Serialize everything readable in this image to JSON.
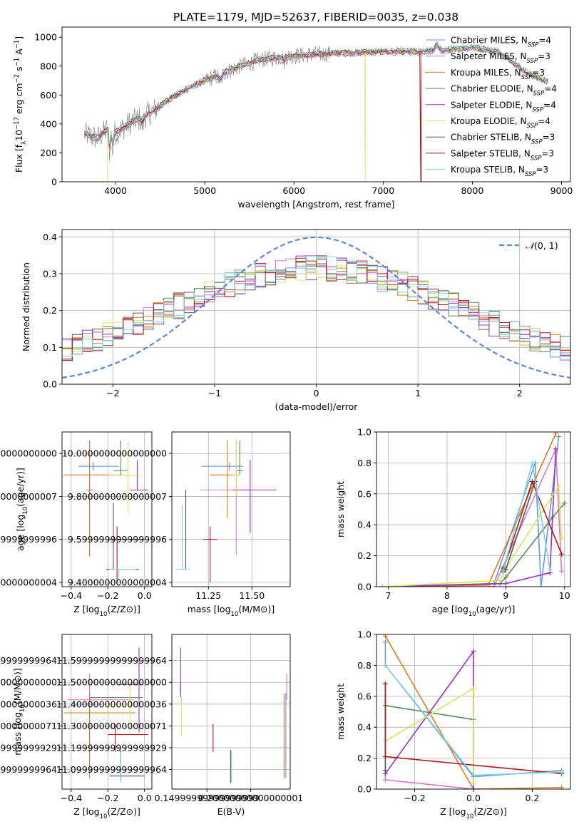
{
  "figure_title": "PLATE=1179, MJD=52637, FIBERID=0035, z=0.038",
  "colors": {
    "Chabrier MILES": "#6699dd",
    "Salpeter MILES": "#e377c2",
    "Kroupa MILES": "#e07b1f",
    "Chabrier ELODIE": "#5a8a5a",
    "Salpeter ELODIE": "#9b30c0",
    "Kroupa ELODIE": "#d4e85a",
    "Chabrier STELIB": "#555555",
    "Salpeter STELIB": "#b01818",
    "Kroupa STELIB": "#7dd3dc",
    "data": "#808080"
  },
  "chart_data": [
    {
      "id": "spectrum",
      "type": "line",
      "title": "PLATE=1179, MJD=52637, FIBERID=0035, z=0.038",
      "xlabel": "wavelength [Angstrom, rest frame]",
      "ylabel": "Flux [f_λ 10^-17 erg cm^-2 s^-1 A^-1]",
      "xlim": [
        3400,
        9100
      ],
      "ylim": [
        0,
        1070
      ],
      "xticks": [
        4000,
        5000,
        6000,
        7000,
        8000,
        9000
      ],
      "yticks": [
        0,
        200,
        400,
        600,
        800,
        1000
      ],
      "legend_position": "right",
      "legend": [
        {
          "label": "Chabrier MILES, N",
          "sub": "SSP",
          "suffix": "=4"
        },
        {
          "label": "Salpeter MILES, N",
          "sub": "SSP",
          "suffix": "=3"
        },
        {
          "label": "Kroupa MILES, N",
          "sub": "SSP",
          "suffix": "=3"
        },
        {
          "label": "Chabrier ELODIE, N",
          "sub": "SSP",
          "suffix": "=4"
        },
        {
          "label": "Salpeter ELODIE, N",
          "sub": "SSP",
          "suffix": "=4"
        },
        {
          "label": "Kroupa ELODIE, N",
          "sub": "SSP",
          "suffix": "=4"
        },
        {
          "label": "Chabrier STELIB, N",
          "sub": "SSP",
          "suffix": "=3"
        },
        {
          "label": "Salpeter STELIB, N",
          "sub": "SSP",
          "suffix": "=3"
        },
        {
          "label": "Kroupa STELIB, N",
          "sub": "SSP",
          "suffix": "=3"
        }
      ],
      "continuum_anchors": {
        "x": [
          3650,
          3800,
          3900,
          4000,
          4200,
          4400,
          4600,
          4800,
          5000,
          5200,
          5400,
          5600,
          5800,
          6000,
          6200,
          6500,
          7000,
          7400,
          7700,
          8000,
          8300,
          8600,
          8800
        ],
        "y": [
          330,
          300,
          360,
          340,
          420,
          480,
          570,
          640,
          700,
          750,
          800,
          840,
          860,
          870,
          880,
          890,
          900,
          900,
          910,
          930,
          900,
          760,
          700
        ]
      },
      "dropouts": [
        {
          "series": "Kroupa ELODIE",
          "x": 3910
        },
        {
          "series": "Kroupa ELODIE",
          "x": 6800
        },
        {
          "series": "Salpeter STELIB",
          "x": 7420
        }
      ]
    },
    {
      "id": "residuals",
      "type": "step-histogram",
      "xlabel": "(data-model)/error",
      "ylabel": "Normed distribution",
      "xlim": [
        -2.5,
        2.5
      ],
      "ylim": [
        0,
        0.42
      ],
      "xticks": [
        -2,
        -1,
        0,
        1,
        2
      ],
      "yticks": [
        0.0,
        0.1,
        0.2,
        0.3,
        0.4
      ],
      "reference_curve": {
        "label": "N(0,1)",
        "mu": 0,
        "sigma": 1,
        "style": "dashed"
      },
      "legend_position": "top-right",
      "bin_width": 0.1
    },
    {
      "id": "age_vs_Z",
      "type": "errorbar",
      "xlabel": "Z [log10(Z/Z⊙)]",
      "ylabel": "age [log10(age/yr)]",
      "xlim": [
        -0.45,
        0.04
      ],
      "ylim": [
        9.38,
        10.1
      ],
      "xticks": [
        -0.4,
        -0.2,
        0.0
      ],
      "yticks": [
        9.4,
        9.6,
        9.8,
        10.0
      ],
      "points": [
        {
          "series": "Chabrier MILES",
          "x": -0.28,
          "xerr": [
            0.08,
            0.14
          ],
          "y": 9.94,
          "yerr": [
            0.02,
            0.02
          ]
        },
        {
          "series": "Salpeter MILES",
          "x": -0.3,
          "xerr": [
            0.02,
            0.02
          ],
          "y": 9.83,
          "yerr": [
            0.3,
            0.23
          ]
        },
        {
          "series": "Kroupa MILES",
          "x": -0.3,
          "xerr": [
            0.14,
            0.18
          ],
          "y": 9.9,
          "yerr": [
            0.38,
            0.16
          ]
        },
        {
          "series": "Chabrier ELODIE",
          "x": -0.13,
          "xerr": [
            0.04,
            0.04
          ],
          "y": 9.92,
          "yerr": [
            0.02,
            0.14
          ]
        },
        {
          "series": "Salpeter ELODIE",
          "x": -0.04,
          "xerr": [
            0.04,
            0.06
          ],
          "y": 9.83,
          "yerr": [
            0.0,
            0.14
          ]
        },
        {
          "series": "Kroupa ELODIE",
          "x": -0.09,
          "xerr": [
            0.11,
            0.06
          ],
          "y": 9.9,
          "yerr": [
            0.18,
            0.15
          ]
        },
        {
          "series": "Chabrier STELIB",
          "x": -0.17,
          "xerr": [
            0.04,
            0.14
          ],
          "y": 9.46,
          "yerr": [
            0.0,
            0.31
          ]
        },
        {
          "series": "Salpeter STELIB",
          "x": -0.15,
          "xerr": [
            0.04,
            0.15
          ],
          "y": 9.6,
          "yerr": [
            0.2,
            0.06
          ]
        },
        {
          "series": "Kroupa STELIB",
          "x": -0.14,
          "xerr": [
            0.05,
            0.09
          ],
          "y": 9.46,
          "yerr": [
            0.04,
            0.0
          ]
        }
      ]
    },
    {
      "id": "age_vs_mass",
      "type": "errorbar",
      "xlabel": "mass [log10(M/M⊙)]",
      "ylabel": "",
      "xlim": [
        11.04,
        11.72
      ],
      "ylim": [
        9.38,
        10.1
      ],
      "xticks": [
        11.25,
        11.5
      ],
      "yticks": [
        9.4,
        9.6,
        9.8,
        10.0
      ],
      "points": [
        {
          "series": "Chabrier MILES",
          "x": 11.37,
          "xerr": [
            0.16,
            0.08
          ],
          "y": 9.94,
          "yerr": [
            0.02,
            0.02
          ]
        },
        {
          "series": "Salpeter MILES",
          "x": 11.41,
          "xerr": [
            0.21,
            0.08
          ],
          "y": 9.83,
          "yerr": [
            0.3,
            0.23
          ]
        },
        {
          "series": "Kroupa MILES",
          "x": 11.36,
          "xerr": [
            0.1,
            0.06
          ],
          "y": 9.9,
          "yerr": [
            0.2,
            0.16
          ]
        },
        {
          "series": "Chabrier ELODIE",
          "x": 11.43,
          "xerr": [
            0.02,
            0.02
          ],
          "y": 9.92,
          "yerr": [
            0.02,
            0.14
          ]
        },
        {
          "series": "Salpeter ELODIE",
          "x": 11.49,
          "xerr": [
            0.1,
            0.15
          ],
          "y": 9.83,
          "yerr": [
            0.2,
            0.14
          ]
        },
        {
          "series": "Kroupa ELODIE",
          "x": 11.41,
          "xerr": [
            0.02,
            0.02
          ],
          "y": 9.9,
          "yerr": [
            0.1,
            0.17
          ]
        },
        {
          "series": "Chabrier STELIB",
          "x": 11.12,
          "xerr": [
            0.0,
            0.0
          ],
          "y": 9.46,
          "yerr": [
            0.0,
            0.37
          ]
        },
        {
          "series": "Salpeter STELIB",
          "x": 11.26,
          "xerr": [
            0.04,
            0.04
          ],
          "y": 9.6,
          "yerr": [
            0.2,
            0.06
          ]
        },
        {
          "series": "Kroupa STELIB",
          "x": 11.1,
          "xerr": [
            0.04,
            0.04
          ],
          "y": 9.46,
          "yerr": [
            0.0,
            0.3
          ]
        }
      ]
    },
    {
      "id": "weight_vs_age",
      "type": "line",
      "xlabel": "age [log10(age/yr)]",
      "ylabel": "mass weight",
      "xlim": [
        6.8,
        10.1
      ],
      "ylim": [
        0,
        1.0
      ],
      "xticks": [
        7,
        8,
        9,
        10
      ],
      "yticks": [
        0.0,
        0.2,
        0.4,
        0.6,
        0.8,
        1.0
      ],
      "series": [
        {
          "name": "Chabrier MILES",
          "x": [
            6.9,
            8.8,
            9.5,
            9.6,
            9.9
          ],
          "y": [
            0.0,
            0.02,
            0.8,
            0.0,
            0.97
          ]
        },
        {
          "name": "Salpeter MILES",
          "x": [
            6.9,
            8.8,
            9.85,
            9.95
          ],
          "y": [
            0.0,
            0.0,
            0.89,
            0.1
          ]
        },
        {
          "name": "Kroupa MILES",
          "x": [
            6.9,
            8.7,
            9.85
          ],
          "y": [
            0.0,
            0.01,
            0.99
          ]
        },
        {
          "name": "Chabrier ELODIE",
          "x": [
            6.9,
            8.9,
            9.0,
            9.8,
            10.0
          ],
          "y": [
            0.0,
            0.02,
            0.06,
            0.45,
            0.54
          ]
        },
        {
          "name": "Salpeter ELODIE",
          "x": [
            6.9,
            9.0,
            9.75,
            9.85
          ],
          "y": [
            0.0,
            0.02,
            0.09,
            0.89
          ]
        },
        {
          "name": "Kroupa ELODIE",
          "x": [
            6.9,
            8.9,
            9.0,
            9.9,
            9.95
          ],
          "y": [
            0.0,
            0.04,
            0.12,
            0.65,
            0.31
          ]
        },
        {
          "name": "Chabrier STELIB",
          "x": [
            8.95,
            9.0,
            9.5
          ],
          "y": [
            0.12,
            0.11,
            0.68
          ]
        },
        {
          "name": "Salpeter STELIB",
          "x": [
            8.95,
            9.45,
            9.95
          ],
          "y": [
            0.1,
            0.68,
            0.21
          ]
        },
        {
          "name": "Kroupa STELIB",
          "x": [
            8.95,
            9.45,
            9.75
          ],
          "y": [
            0.09,
            0.8,
            0.11
          ]
        }
      ]
    },
    {
      "id": "mass_vs_Z",
      "type": "errorbar",
      "xlabel": "Z [log10(Z/Z⊙)]",
      "ylabel": "mass [log10(M/M⊙)]",
      "xlim": [
        -0.45,
        0.04
      ],
      "ylim": [
        11.01,
        11.72
      ],
      "xticks": [
        -0.4,
        -0.2,
        0.0
      ],
      "yticks": [
        11.1,
        11.2,
        11.3,
        11.4,
        11.5,
        11.6
      ],
      "points": [
        {
          "series": "Chabrier MILES",
          "x": -0.3,
          "xerr": [
            0.08,
            0.1
          ],
          "y": 11.4,
          "yerr": [
            0.29,
            0.08
          ]
        },
        {
          "series": "Salpeter MILES",
          "x": -0.3,
          "xerr": [
            0.12,
            0.24
          ],
          "y": 11.42,
          "yerr": [
            0.26,
            0.12
          ]
        },
        {
          "series": "Kroupa MILES",
          "x": -0.3,
          "xerr": [
            0.14,
            0.25
          ],
          "y": 11.36,
          "yerr": [
            0.3,
            0.09
          ]
        },
        {
          "series": "Chabrier ELODIE",
          "x": -0.3,
          "xerr": [
            0.0,
            0.29
          ],
          "y": 11.43,
          "yerr": [
            0.0,
            0.0
          ]
        },
        {
          "series": "Salpeter ELODIE",
          "x": -0.03,
          "xerr": [
            0.11,
            0.02
          ],
          "y": 11.49,
          "yerr": [
            0.22,
            0.17
          ]
        },
        {
          "series": "Kroupa ELODIE",
          "x": -0.08,
          "xerr": [
            0.15,
            0.0
          ],
          "y": 11.4,
          "yerr": [
            0.14,
            0.1
          ]
        },
        {
          "series": "Chabrier STELIB",
          "x": -0.13,
          "xerr": [
            0.06,
            0.13
          ],
          "y": 11.07,
          "yerr": [
            0.02,
            0.12
          ]
        },
        {
          "series": "Salpeter STELIB",
          "x": -0.16,
          "xerr": [
            0.04,
            0.18
          ],
          "y": 11.26,
          "yerr": [
            0.08,
            0.05
          ]
        },
        {
          "series": "Kroupa STELIB",
          "x": -0.13,
          "xerr": [
            0.03,
            0.12
          ],
          "y": 11.1,
          "yerr": [
            0.06,
            0.08
          ]
        }
      ]
    },
    {
      "id": "mass_vs_ebv",
      "type": "errorbar",
      "xlabel": "E(B-V)",
      "ylabel": "",
      "xlim": [
        0.11,
        0.245
      ],
      "ylim": [
        11.01,
        11.72
      ],
      "xticks": [
        0.15,
        0.2
      ],
      "yticks": [
        11.1,
        11.2,
        11.3,
        11.4,
        11.5,
        11.6
      ],
      "points": [
        {
          "series": "Chabrier MILES",
          "x": 0.24,
          "xerr": [
            0.0,
            0.0
          ],
          "y": 11.3,
          "yerr": [
            0.24,
            0.15
          ]
        },
        {
          "series": "Salpeter MILES",
          "x": 0.241,
          "xerr": [
            0.0,
            0.0
          ],
          "y": 11.42,
          "yerr": [
            0.0,
            0.12
          ]
        },
        {
          "series": "Kroupa MILES",
          "x": 0.238,
          "xerr": [
            0.0,
            0.0
          ],
          "y": 11.3,
          "yerr": [
            0.24,
            0.15
          ]
        },
        {
          "series": "Chabrier ELODIE",
          "x": 0.12,
          "xerr": [
            0.0,
            0.0
          ],
          "y": 11.5,
          "yerr": [
            0.05,
            0.0
          ]
        },
        {
          "series": "Salpeter ELODIE",
          "x": 0.12,
          "xerr": [
            0.0,
            0.0
          ],
          "y": 11.49,
          "yerr": [
            0.06,
            0.17
          ]
        },
        {
          "series": "Kroupa ELODIE",
          "x": 0.121,
          "xerr": [
            0.0,
            0.0
          ],
          "y": 11.34,
          "yerr": [
            0.09,
            0.09
          ]
        },
        {
          "series": "Chabrier STELIB",
          "x": 0.177,
          "xerr": [
            0.0,
            0.0
          ],
          "y": 11.09,
          "yerr": [
            0.05,
            0.1
          ]
        },
        {
          "series": "Salpeter STELIB",
          "x": 0.157,
          "xerr": [
            0.0,
            0.0
          ],
          "y": 11.25,
          "yerr": [
            0.07,
            0.06
          ]
        },
        {
          "series": "Kroupa STELIB",
          "x": 0.178,
          "xerr": [
            0.0,
            0.0
          ],
          "y": 11.12,
          "yerr": [
            0.08,
            0.07
          ]
        }
      ]
    },
    {
      "id": "weight_vs_Z",
      "type": "line",
      "xlabel": "Z [log10(Z/Z⊙)]",
      "ylabel": "mass weight",
      "xlim": [
        -0.33,
        0.33
      ],
      "ylim": [
        0,
        1.0
      ],
      "xticks": [
        -0.2,
        0.0,
        0.2
      ],
      "yticks": [
        0.0,
        0.2,
        0.4,
        0.6,
        0.8,
        1.0
      ],
      "series": [
        {
          "name": "Chabrier MILES",
          "x": [
            -0.3,
            -0.3,
            0.0,
            0.3
          ],
          "y": [
            0.95,
            0.8,
            0.08,
            0.12
          ]
        },
        {
          "name": "Salpeter MILES",
          "x": [
            -0.3,
            -0.3,
            0.0
          ],
          "y": [
            0.1,
            0.06,
            0.0
          ]
        },
        {
          "name": "Kroupa MILES",
          "x": [
            -0.3,
            0.0,
            0.3
          ],
          "y": [
            0.99,
            0.0,
            0.01
          ]
        },
        {
          "name": "Chabrier ELODIE",
          "x": [
            -0.3,
            0.0
          ],
          "y": [
            0.54,
            0.45
          ]
        },
        {
          "name": "Salpeter ELODIE",
          "x": [
            -0.3,
            0.0,
            0.0
          ],
          "y": [
            0.1,
            0.89,
            0.0
          ]
        },
        {
          "name": "Kroupa ELODIE",
          "x": [
            -0.3,
            0.0,
            0.0
          ],
          "y": [
            0.31,
            0.65,
            0.04
          ]
        },
        {
          "name": "Chabrier STELIB",
          "x": [
            -0.3,
            -0.3
          ],
          "y": [
            0.12,
            0.68
          ]
        },
        {
          "name": "Salpeter STELIB",
          "x": [
            -0.3,
            -0.3,
            0.3
          ],
          "y": [
            0.68,
            0.21,
            0.1
          ]
        },
        {
          "name": "Kroupa STELIB",
          "x": [
            -0.3,
            0.0,
            0.3
          ],
          "y": [
            0.8,
            0.09,
            0.11
          ]
        }
      ]
    }
  ]
}
